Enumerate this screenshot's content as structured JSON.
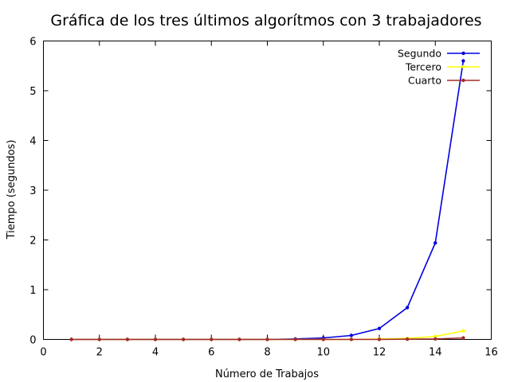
{
  "chart_data": {
    "type": "line",
    "title": "Gráfica de los tres últimos algorítmos con 3 trabajadores",
    "xlabel": "Número de Trabajos",
    "ylabel": "Tiempo (segundos)",
    "xlim": [
      0,
      16
    ],
    "ylim": [
      0,
      6
    ],
    "xticks": [
      "0",
      "2",
      "4",
      "6",
      "8",
      "10",
      "12",
      "14",
      "16"
    ],
    "yticks": [
      "0",
      "1",
      "2",
      "3",
      "4",
      "5",
      "6"
    ],
    "grid": false,
    "legend_position": "top-right",
    "x": [
      1,
      2,
      3,
      4,
      5,
      6,
      7,
      8,
      9,
      10,
      11,
      12,
      13,
      14,
      15
    ],
    "series": [
      {
        "name": "Segundo",
        "color": "#0000e0",
        "values": [
          0,
          0,
          0,
          0,
          0,
          0,
          0,
          0,
          0.01,
          0.03,
          0.08,
          0.22,
          0.64,
          1.94,
          5.6
        ]
      },
      {
        "name": "Tercero",
        "color": "#ffff00",
        "values": [
          0,
          0,
          0,
          0,
          0,
          0,
          0,
          0,
          0,
          0,
          0,
          0.01,
          0.02,
          0.06,
          0.17
        ]
      },
      {
        "name": "Cuarto",
        "color": "#a52a2a",
        "values": [
          0,
          0,
          0,
          0,
          0,
          0,
          0,
          0,
          0,
          0,
          0,
          0,
          0.005,
          0.01,
          0.03
        ]
      }
    ]
  }
}
